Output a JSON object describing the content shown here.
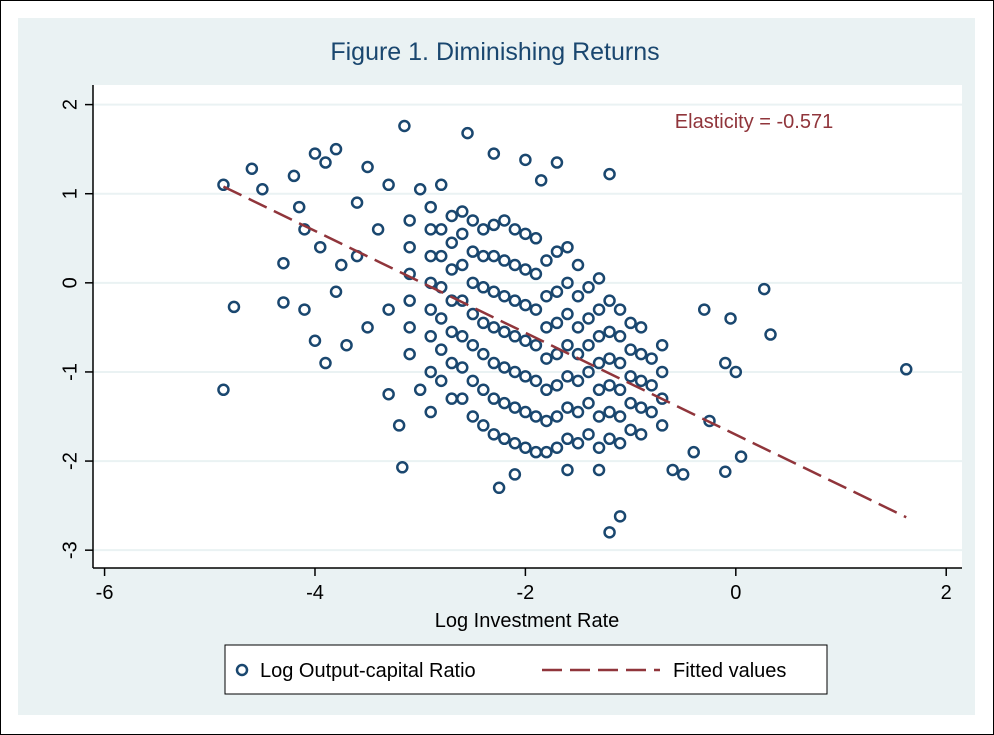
{
  "chart_data": {
    "type": "scatter",
    "title": "Figure 1. Diminishing Returns",
    "x_label": "Log Investment Rate",
    "annotation": "Elasticity = -0.571",
    "xlim": [
      -6.11,
      2.15
    ],
    "xticks": [
      -6,
      -4,
      -2,
      0,
      2
    ],
    "ylim": [
      -3.2,
      2.22
    ],
    "yticks": [
      -3,
      -2,
      -1,
      0,
      1,
      2
    ],
    "grid": true,
    "legend": "bottom",
    "series": [
      {
        "name": "Log Output-capital Ratio",
        "color": "#1a476f",
        "type": "scatter",
        "x": [
          -4.87,
          -4.87,
          -4.77,
          1.62,
          0.27,
          0.33,
          -3.15,
          -2.55,
          -1.2,
          -1.2,
          -1.1,
          -3.17,
          -2.25,
          -0.1,
          0.05,
          -4.3,
          -4.3,
          -4.6,
          -4.5,
          -4.1,
          -4.0,
          -3.8,
          -3.9,
          -4.2,
          -4.15,
          -3.95,
          -3.75,
          -3.5,
          -3.3,
          -3.0,
          -2.8,
          -2.3,
          -2.0,
          -1.7,
          -1.85,
          -1.3,
          -1.6,
          -2.1,
          -0.6,
          -0.5,
          -0.4,
          -0.25,
          -0.1,
          0.0,
          -0.05,
          -0.3,
          -3.9,
          -3.7,
          -3.5,
          -3.0,
          -3.3,
          -2.9,
          -3.2,
          -4.0,
          -4.1,
          -3.8,
          -3.6,
          -3.4,
          -3.6,
          -3.3,
          -3.1,
          -3.1,
          -3.1,
          -3.1,
          -3.1,
          -3.1,
          -2.9,
          -2.9,
          -2.9,
          -2.9,
          -2.9,
          -2.9,
          -2.9,
          -2.7,
          -2.7,
          -2.7,
          -2.7,
          -2.7,
          -2.7,
          -2.7,
          -2.5,
          -2.5,
          -2.5,
          -2.5,
          -2.5,
          -2.5,
          -2.5,
          -2.3,
          -2.3,
          -2.3,
          -2.3,
          -2.3,
          -2.3,
          -2.3,
          -2.1,
          -2.1,
          -2.1,
          -2.1,
          -2.1,
          -2.1,
          -2.1,
          -1.9,
          -1.9,
          -1.9,
          -1.9,
          -1.9,
          -1.9,
          -1.9,
          -1.7,
          -1.7,
          -1.7,
          -1.7,
          -1.7,
          -1.7,
          -1.7,
          -1.5,
          -1.5,
          -1.5,
          -1.5,
          -1.5,
          -1.5,
          -1.5,
          -1.3,
          -1.3,
          -1.3,
          -1.3,
          -1.3,
          -1.3,
          -1.3,
          -1.1,
          -1.1,
          -1.1,
          -1.1,
          -1.1,
          -1.1,
          -0.9,
          -0.9,
          -0.9,
          -0.9,
          -0.9,
          -0.7,
          -0.7,
          -0.7,
          -0.7,
          -2.8,
          -2.8,
          -2.8,
          -2.8,
          -2.8,
          -2.8,
          -2.6,
          -2.6,
          -2.6,
          -2.6,
          -2.6,
          -2.6,
          -2.6,
          -2.4,
          -2.4,
          -2.4,
          -2.4,
          -2.4,
          -2.4,
          -2.4,
          -2.2,
          -2.2,
          -2.2,
          -2.2,
          -2.2,
          -2.2,
          -2.2,
          -2.0,
          -2.0,
          -2.0,
          -2.0,
          -2.0,
          -2.0,
          -2.0,
          -1.8,
          -1.8,
          -1.8,
          -1.8,
          -1.8,
          -1.8,
          -1.8,
          -1.6,
          -1.6,
          -1.6,
          -1.6,
          -1.6,
          -1.6,
          -1.6,
          -1.4,
          -1.4,
          -1.4,
          -1.4,
          -1.4,
          -1.4,
          -1.2,
          -1.2,
          -1.2,
          -1.2,
          -1.2,
          -1.2,
          -1.0,
          -1.0,
          -1.0,
          -1.0,
          -1.0,
          -0.8,
          -0.8,
          -0.8
        ],
        "values": [
          1.1,
          -1.2,
          -0.27,
          -0.97,
          -0.07,
          -0.58,
          1.76,
          1.68,
          1.22,
          -2.8,
          -2.62,
          -2.07,
          -2.3,
          -2.12,
          -1.95,
          0.22,
          -0.22,
          1.28,
          1.05,
          0.6,
          1.45,
          1.5,
          1.35,
          1.2,
          0.85,
          0.4,
          0.2,
          1.3,
          1.1,
          1.05,
          1.1,
          1.45,
          1.38,
          1.35,
          1.15,
          -2.1,
          -2.1,
          -2.15,
          -2.1,
          -2.15,
          -1.9,
          -1.55,
          -0.9,
          -1.0,
          -0.4,
          -0.3,
          -0.9,
          -0.7,
          -0.5,
          -1.2,
          -1.25,
          -1.45,
          -1.6,
          -0.65,
          -0.3,
          -0.1,
          0.3,
          0.6,
          0.9,
          -0.3,
          -0.8,
          -0.5,
          -0.2,
          0.1,
          0.4,
          0.7,
          -1.0,
          -0.6,
          -0.3,
          0.0,
          0.3,
          0.6,
          0.85,
          -1.3,
          -0.9,
          -0.55,
          -0.2,
          0.15,
          0.45,
          0.75,
          -1.5,
          -1.1,
          -0.7,
          -0.35,
          0.0,
          0.35,
          0.7,
          -1.7,
          -1.3,
          -0.9,
          -0.5,
          -0.1,
          0.3,
          0.65,
          -1.8,
          -1.4,
          -1.0,
          -0.6,
          -0.2,
          0.2,
          0.6,
          -1.9,
          -1.5,
          -1.1,
          -0.7,
          -0.3,
          0.1,
          0.5,
          -1.85,
          -1.5,
          -1.15,
          -0.8,
          -0.45,
          -0.1,
          0.35,
          -1.8,
          -1.45,
          -1.1,
          -0.8,
          -0.5,
          -0.15,
          0.2,
          -1.85,
          -1.5,
          -1.2,
          -0.9,
          -0.6,
          -0.3,
          0.05,
          -1.8,
          -1.5,
          -1.2,
          -0.9,
          -0.6,
          -0.3,
          -1.7,
          -1.4,
          -1.1,
          -0.8,
          -0.5,
          -1.6,
          -1.3,
          -1.0,
          -0.7,
          -1.1,
          -0.75,
          -0.4,
          -0.05,
          0.3,
          0.6,
          -1.3,
          -0.95,
          -0.6,
          -0.2,
          0.2,
          0.55,
          0.8,
          -1.6,
          -1.2,
          -0.8,
          -0.45,
          -0.05,
          0.3,
          0.6,
          -1.75,
          -1.35,
          -0.95,
          -0.55,
          -0.15,
          0.25,
          0.7,
          -1.85,
          -1.45,
          -1.05,
          -0.65,
          -0.25,
          0.15,
          0.55,
          -1.9,
          -1.55,
          -1.2,
          -0.85,
          -0.5,
          -0.15,
          0.25,
          -1.75,
          -1.4,
          -1.05,
          -0.7,
          -0.35,
          0.0,
          0.4,
          -1.7,
          -1.35,
          -1.0,
          -0.7,
          -0.4,
          -0.05,
          -1.75,
          -1.45,
          -1.15,
          -0.85,
          -0.55,
          -0.2,
          -1.65,
          -1.35,
          -1.05,
          -0.75,
          -0.45,
          -1.45,
          -1.15,
          -0.85
        ]
      },
      {
        "name": "Fitted values",
        "color": "#90353b",
        "type": "line",
        "x": [
          -4.87,
          1.62
        ],
        "values": [
          1.08,
          -2.63
        ]
      }
    ]
  }
}
